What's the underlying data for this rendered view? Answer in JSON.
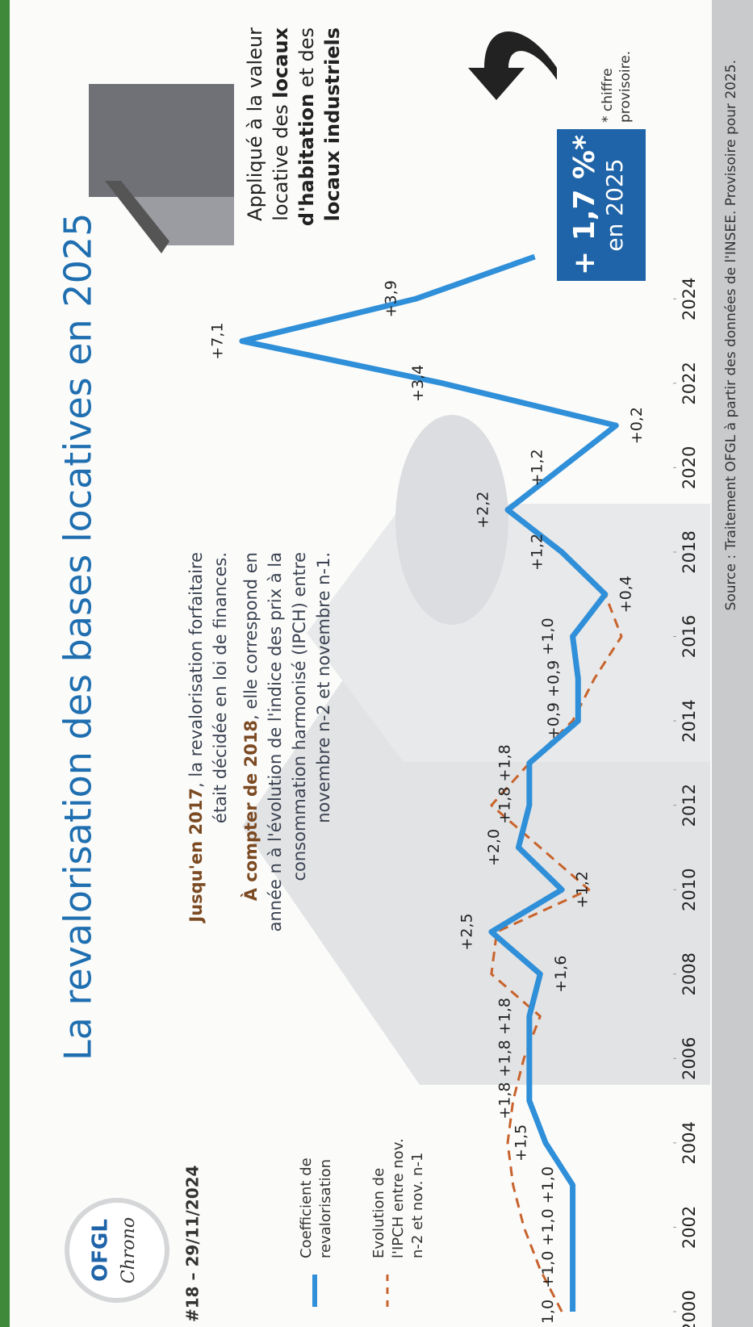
{
  "header": {
    "logo": "OFGL",
    "logo_sub": "Chrono",
    "issue": "#18 – 29/11/2024"
  },
  "chart_data": {
    "type": "line",
    "title": "La revalorisation des bases locatives en 2025",
    "x": [
      2000,
      2001,
      2002,
      2003,
      2004,
      2005,
      2006,
      2007,
      2008,
      2009,
      2010,
      2011,
      2012,
      2013,
      2014,
      2015,
      2016,
      2017,
      2018,
      2019,
      2020,
      2021,
      2022,
      2023,
      2024,
      2025
    ],
    "xlim": [
      2000,
      2025
    ],
    "xticks": [
      2000,
      2002,
      2004,
      2006,
      2008,
      2010,
      2012,
      2014,
      2016,
      2018,
      2020,
      2022,
      2024
    ],
    "series": [
      {
        "name": "Coefficient de revalorisation",
        "color": "#2f8fd8",
        "values": [
          1.0,
          1.0,
          1.0,
          1.0,
          1.5,
          1.8,
          1.8,
          1.8,
          1.6,
          2.5,
          1.2,
          2.0,
          1.8,
          1.8,
          0.9,
          0.9,
          1.0,
          0.4,
          1.2,
          2.2,
          1.2,
          0.2,
          3.4,
          7.1,
          3.9,
          1.7
        ],
        "value_labels": [
          "1,0",
          "+1,0",
          "+1,0",
          "+1,0",
          "+1,5",
          "+1,8",
          "+1,8",
          "+1,8",
          "+1,6",
          "+2,5",
          "+1,2",
          "+2,0",
          "+1,8",
          "+1,8",
          "+0,9",
          "+0,9",
          "+1,0",
          "+0,4",
          "+1,2",
          "+2,2",
          "+1,2",
          "+0,2",
          "+3,4",
          "+7,1",
          "+3,9",
          null
        ]
      },
      {
        "name": "Evolution de l'IPCH entre nov. n-2 et nov. n-1",
        "color": "#c8632c",
        "dashed": true,
        "values": [
          1.2,
          1.6,
          1.9,
          2.1,
          2.2,
          2.1,
          1.9,
          1.6,
          2.5,
          2.4,
          0.7,
          1.6,
          2.5,
          1.8,
          1.0,
          0.6,
          0.1,
          0.4,
          1.2,
          null,
          null,
          null,
          null,
          null,
          null,
          null
        ]
      }
    ],
    "notes": [
      [
        {
          "text": "Jusqu'en 2017",
          "bold": true
        },
        {
          "text": ", la revalorisation forfaitaire était décidée en loi de finances.",
          "bold": false
        }
      ],
      [
        {
          "text": "À compter de 2018",
          "bold": true
        },
        {
          "text": ", elle correspond en année n à l'évolution de l'indice des prix à la consommation harmonisé (IPCH) entre novembre n-2 et novembre n-1.",
          "bold": false
        }
      ]
    ],
    "side_note": [
      {
        "text": "Appliqué à la valeur locative des ",
        "bold": false
      },
      {
        "text": "locaux d'habitation",
        "bold": true
      },
      {
        "text": " et des ",
        "bold": false
      },
      {
        "text": "locaux industriels",
        "bold": true
      }
    ],
    "highlight": {
      "value": "+ 1,7 %*",
      "sub": "en 2025",
      "footnote": "* chiffre provisoire."
    },
    "source": "Source : Traitement OFGL à partir des données de l'INSEE. Provisoire pour 2025."
  }
}
